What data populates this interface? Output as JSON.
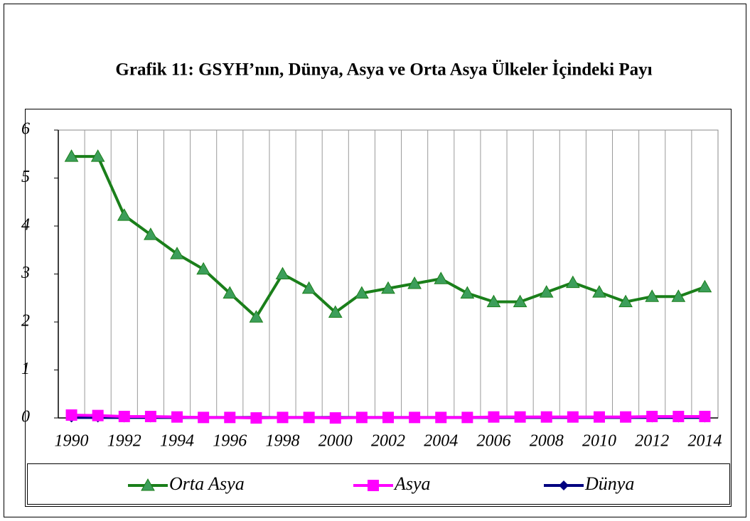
{
  "chart_data": {
    "type": "line",
    "title": "Grafik 11: GSYH’nın, Dünya, Asya ve Orta Asya Ülkeler İçindeki Payı",
    "x": [
      1990,
      1991,
      1992,
      1993,
      1994,
      1995,
      1996,
      1997,
      1998,
      1999,
      2000,
      2001,
      2002,
      2003,
      2004,
      2005,
      2006,
      2007,
      2008,
      2009,
      2010,
      2011,
      2012,
      2013,
      2014
    ],
    "xlim": [
      1989.5,
      2014.5
    ],
    "xticks": [
      1990,
      1992,
      1994,
      1996,
      1998,
      2000,
      2002,
      2004,
      2006,
      2008,
      2010,
      2012,
      2014
    ],
    "ylim": [
      0,
      6
    ],
    "yticks": [
      0,
      1,
      2,
      3,
      4,
      5,
      6
    ],
    "grid": true,
    "legend": "bottom",
    "series": [
      {
        "name": "Orta Asya",
        "color": "#1a7f1a",
        "marker": "triangle",
        "values": [
          5.45,
          5.45,
          4.22,
          3.82,
          3.42,
          3.1,
          2.6,
          2.1,
          3.0,
          2.7,
          2.2,
          2.6,
          2.7,
          2.8,
          2.9,
          2.6,
          2.42,
          2.42,
          2.62,
          2.82,
          2.62,
          2.42,
          2.53,
          2.53,
          2.73
        ]
      },
      {
        "name": "Asya",
        "color": "#ff00ff",
        "marker": "square",
        "values": [
          0.06,
          0.05,
          0.03,
          0.03,
          0.02,
          0.01,
          0.01,
          0.0,
          0.01,
          0.01,
          0.0,
          0.01,
          0.01,
          0.01,
          0.01,
          0.01,
          0.02,
          0.02,
          0.02,
          0.02,
          0.02,
          0.02,
          0.03,
          0.03,
          0.03
        ]
      },
      {
        "name": "Dünya",
        "color": "#000080",
        "marker": "diamond",
        "values": [
          0.01,
          0.01,
          0.01,
          0.01,
          0.01,
          0.01,
          0.01,
          0.01,
          0.01,
          0.01,
          0.01,
          0.01,
          0.01,
          0.01,
          0.01,
          0.01,
          0.01,
          0.01,
          0.01,
          0.01,
          0.01,
          0.01,
          0.01,
          0.01,
          0.01
        ]
      }
    ]
  }
}
